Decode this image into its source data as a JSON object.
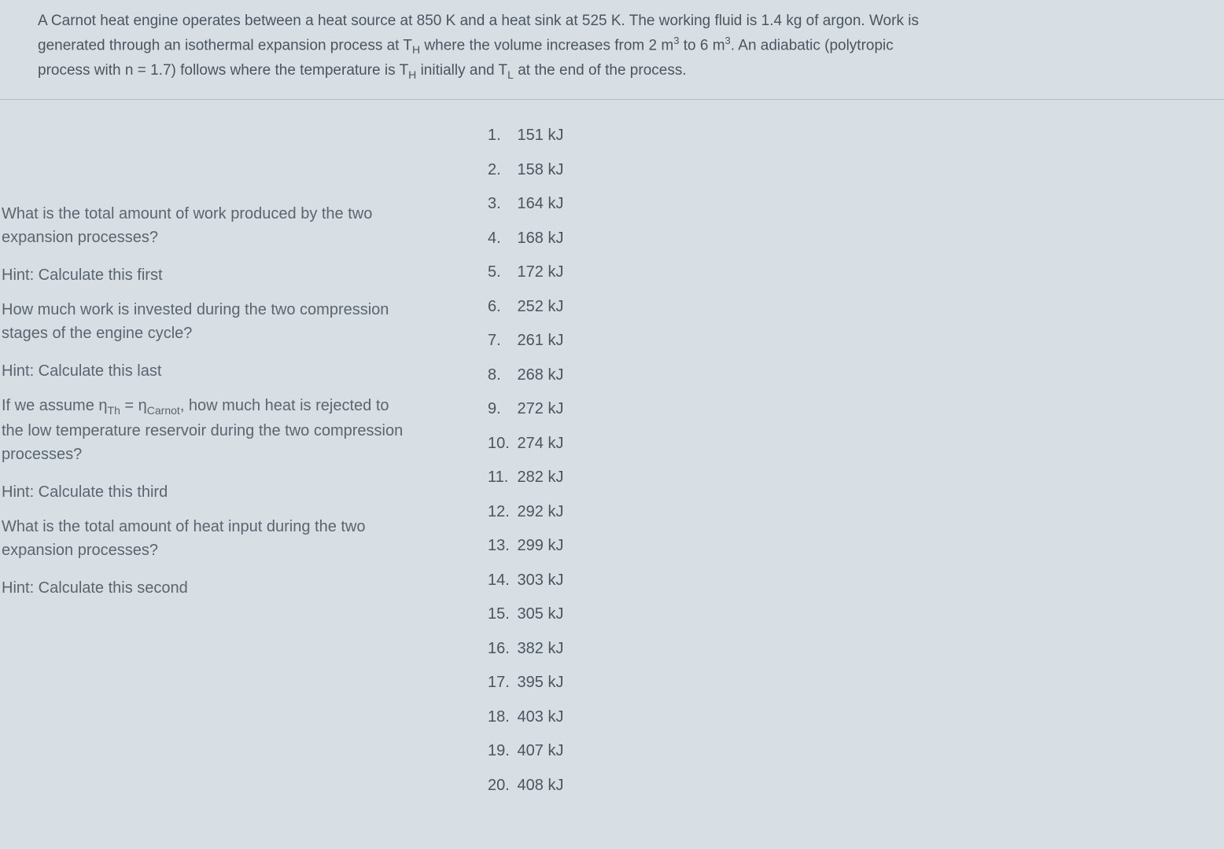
{
  "problem": {
    "line1": "A Carnot heat engine operates between a heat source at 850 K and a heat sink at 525 K. The working fluid is 1.4 kg of argon.  Work is",
    "line2_pre": "generated through an isothermal expansion process at T",
    "line2_sub1": "H",
    "line2_mid": " where the volume increases from 2 m",
    "line2_sup1": "3",
    "line2_mid2": " to 6 m",
    "line2_sup2": "3",
    "line2_end": ".  An adiabatic (polytropic",
    "line3_pre": "process with n = 1.7) follows where the temperature is T",
    "line3_sub1": "H",
    "line3_mid": " initially and T",
    "line3_sub2": "L",
    "line3_end": "  at the end of the process."
  },
  "questions": {
    "q1_line1": "What is the total amount of work produced by the two",
    "q1_line2": "expansion processes?",
    "hint1": "Hint: Calculate this first",
    "q2_line1": "How much work is invested during the two compression",
    "q2_line2": "stages of the engine cycle?",
    "hint2": "Hint: Calculate this last",
    "q3_pre": "If we assume η",
    "q3_sub1": "Th",
    "q3_mid": " = η",
    "q3_sub2": "Carnot",
    "q3_mid2": ", how much heat is rejected to",
    "q3_line2": "the low temperature reservoir during the two compression",
    "q3_line3": "processes?",
    "hint3": "Hint: Calculate this third",
    "q4_line1": "What is the total amount of heat input during the two",
    "q4_line2": "expansion processes?",
    "hint4": "Hint: Calculate this second"
  },
  "answers": [
    {
      "num": "1.",
      "val": "151 kJ"
    },
    {
      "num": "2.",
      "val": "158 kJ"
    },
    {
      "num": "3.",
      "val": "164 kJ"
    },
    {
      "num": "4.",
      "val": "168 kJ"
    },
    {
      "num": "5.",
      "val": "172 kJ"
    },
    {
      "num": "6.",
      "val": "252 kJ"
    },
    {
      "num": "7.",
      "val": "261 kJ"
    },
    {
      "num": "8.",
      "val": "268 kJ"
    },
    {
      "num": "9.",
      "val": "272 kJ"
    },
    {
      "num": "10.",
      "val": "274 kJ"
    },
    {
      "num": "11.",
      "val": "282 kJ"
    },
    {
      "num": "12.",
      "val": "292 kJ"
    },
    {
      "num": "13.",
      "val": "299 kJ"
    },
    {
      "num": "14.",
      "val": "303 kJ"
    },
    {
      "num": "15.",
      "val": "305 kJ"
    },
    {
      "num": "16.",
      "val": "382 kJ"
    },
    {
      "num": "17.",
      "val": "395 kJ"
    },
    {
      "num": "18.",
      "val": "403 kJ"
    },
    {
      "num": "19.",
      "val": "407 kJ"
    },
    {
      "num": "20.",
      "val": "408 kJ"
    }
  ],
  "styling": {
    "background_color": "#d8dfe4",
    "text_color": "#4a5560",
    "question_text_color": "#5a6570",
    "border_color": "#b0bcc4",
    "body_fontsize": 19,
    "content_fontsize": 20
  }
}
